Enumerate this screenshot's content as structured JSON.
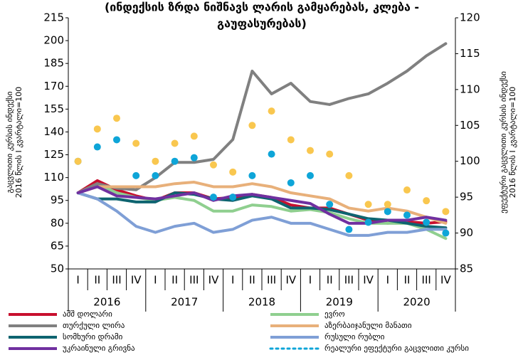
{
  "chart_data": {
    "type": "line",
    "title": [
      "(ინდექსის ზრდა ნიშნავს ლარის გამყარებას, კლება -",
      "გაუფასურებას)"
    ],
    "ylabel": [
      "გაცვლითი კურსის ინდექსი",
      "2016 წლის I კვარტალი=100"
    ],
    "y2label": [
      "ეფექტური გაცვლითი კურსის ინდექსი",
      "2016 წლის I კვარტალი=100"
    ],
    "categories": [
      "I",
      "II",
      "III",
      "IV",
      "I",
      "II",
      "III",
      "IV",
      "I",
      "II",
      "III",
      "IV",
      "I",
      "II",
      "III",
      "IV",
      "I",
      "II",
      "III",
      "IV"
    ],
    "years": [
      "2016",
      "2017",
      "2018",
      "2019",
      "2020"
    ],
    "ylim": [
      50,
      215
    ],
    "yticks": [
      50,
      65,
      80,
      95,
      110,
      125,
      140,
      155,
      170,
      185,
      200,
      215
    ],
    "y2lim": [
      85,
      120
    ],
    "y2ticks": [
      85,
      90,
      95,
      100,
      105,
      110,
      115,
      120
    ],
    "series": [
      {
        "name": "აშშ დოლარი",
        "color": "#c8102e",
        "values": [
          100,
          108,
          102,
          98,
          95,
          100,
          100,
          96,
          97,
          99,
          97,
          92,
          90,
          90,
          86,
          82,
          80,
          81,
          80,
          81
        ]
      },
      {
        "name": "ევრო",
        "color": "#8fcf8f",
        "values": [
          100,
          106,
          100,
          97,
          95,
          97,
          95,
          88,
          88,
          92,
          91,
          88,
          89,
          87,
          83,
          80,
          80,
          80,
          76,
          70
        ]
      },
      {
        "name": "თურქული ლირა",
        "color": "#808080",
        "values": [
          100,
          106,
          103,
          102,
          110,
          120,
          120,
          122,
          135,
          180,
          165,
          172,
          160,
          158,
          162,
          165,
          172,
          180,
          190,
          198
        ]
      },
      {
        "name": "აზერბაიჯანული მანათი",
        "color": "#e8b07a",
        "values": [
          100,
          104,
          104,
          104,
          104,
          106,
          107,
          104,
          104,
          106,
          104,
          100,
          98,
          96,
          90,
          88,
          90,
          88,
          84,
          80
        ]
      },
      {
        "name": "სომხური დრამი",
        "color": "#0e6470",
        "values": [
          100,
          96,
          96,
          94,
          94,
          100,
          99,
          96,
          95,
          98,
          96,
          90,
          90,
          89,
          86,
          83,
          82,
          80,
          78,
          77
        ]
      },
      {
        "name": "რუსული რუბლი",
        "color": "#7f9fd6",
        "values": [
          100,
          96,
          88,
          78,
          74,
          78,
          80,
          74,
          76,
          82,
          84,
          80,
          80,
          76,
          72,
          72,
          74,
          74,
          76,
          76
        ]
      },
      {
        "name": "უკრაინული გრივნა",
        "color": "#7030a0",
        "values": [
          100,
          104,
          98,
          97,
          96,
          98,
          100,
          95,
          98,
          99,
          97,
          95,
          93,
          86,
          80,
          80,
          82,
          82,
          84,
          82
        ]
      },
      {
        "name": "რეალური ეფექტური გაცვლითი კურსი",
        "color": "#0ea5d8",
        "axis": "y2",
        "style": "dots",
        "values": [
          100,
          102,
          103,
          98,
          98,
          100,
          100.5,
          95,
          95,
          98,
          101,
          97,
          98,
          94,
          90.5,
          91.5,
          93,
          92.5,
          91.5,
          90
        ]
      },
      {
        "color": "#f9c74f",
        "axis": "y2",
        "style": "dots",
        "values": [
          100,
          104.5,
          106,
          102.5,
          100,
          102.5,
          103.5,
          99.5,
          98.5,
          105,
          107,
          103,
          101.5,
          101,
          98,
          94,
          94,
          96,
          94.5,
          93
        ]
      }
    ]
  }
}
